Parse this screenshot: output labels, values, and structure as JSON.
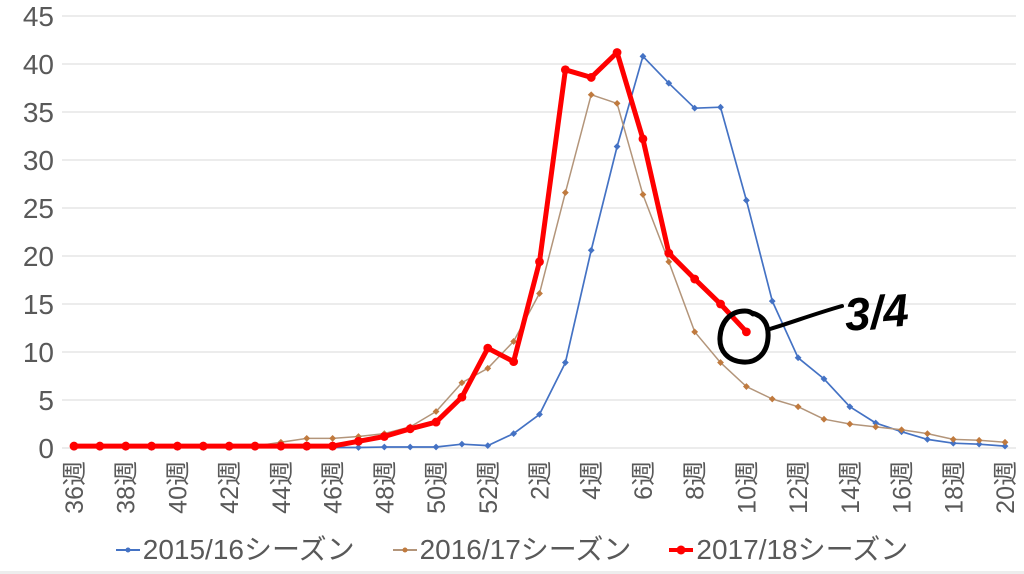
{
  "chart_data": {
    "type": "line",
    "title": "",
    "x_axis": {
      "n_points": 37,
      "tick_positions": [
        0,
        2,
        4,
        6,
        8,
        10,
        12,
        14,
        16,
        18,
        20,
        22,
        24,
        26,
        28,
        30,
        32,
        34,
        36
      ],
      "tick_labels": [
        "36週",
        "38週",
        "40週",
        "42週",
        "44週",
        "46週",
        "48週",
        "50週",
        "52週",
        "2週",
        "4週",
        "6週",
        "8週",
        "10週",
        "12週",
        "14週",
        "16週",
        "18週",
        "20週"
      ]
    },
    "y_axis": {
      "min": 0,
      "max": 45,
      "step": 5,
      "tick_labels": [
        "0",
        "5",
        "10",
        "15",
        "20",
        "25",
        "30",
        "35",
        "40",
        "45"
      ]
    },
    "grid": "horizontal",
    "legend_position": "bottom",
    "series": [
      {
        "name": "2015/16シーズン",
        "color": "#4472C4",
        "marker": "diamond",
        "marker_color": "#4472C4",
        "line_width": 1.7,
        "values": [
          0.05,
          0.05,
          0.05,
          0.05,
          0.05,
          0.05,
          0.05,
          0.05,
          0.05,
          0.05,
          0.05,
          0.05,
          0.1,
          0.1,
          0.1,
          0.4,
          0.25,
          1.5,
          3.5,
          8.9,
          20.6,
          31.4,
          40.8,
          38,
          35.4,
          35.5,
          25.8,
          15.3,
          9.4,
          7.2,
          4.3,
          2.6,
          1.7,
          0.9,
          0.5,
          0.4,
          0.2
        ]
      },
      {
        "name": "2016/17シーズン",
        "color": "#B3957A",
        "marker": "diamond",
        "marker_color": "#C07A3E",
        "line_width": 1.5,
        "values": [
          0.2,
          0.2,
          0.2,
          0.2,
          0.2,
          0.2,
          0.2,
          0.2,
          0.6,
          1,
          1,
          1.2,
          1.5,
          2.2,
          3.8,
          6.8,
          8.3,
          11.1,
          16.1,
          26.6,
          36.8,
          35.9,
          26.4,
          19.4,
          12.1,
          8.9,
          6.4,
          5.1,
          4.3,
          3,
          2.5,
          2.2,
          1.9,
          1.5,
          0.9,
          0.8,
          0.6
        ]
      },
      {
        "name": "2017/18シーズン",
        "color": "#FF0000",
        "marker": "circle",
        "marker_color": "#FF0000",
        "line_width": 5,
        "values": [
          0.2,
          0.2,
          0.2,
          0.2,
          0.2,
          0.2,
          0.2,
          0.2,
          0.2,
          0.2,
          0.2,
          0.7,
          1.2,
          2,
          2.7,
          5.3,
          10.4,
          9,
          19.4,
          39.4,
          38.6,
          41.2,
          32.2,
          20.3,
          17.6,
          15,
          12.1,
          null,
          null,
          null,
          null,
          null,
          null,
          null,
          null,
          null,
          null
        ]
      }
    ],
    "annotation": {
      "label": "3/4",
      "style": "handwritten circle around last point of 2017/18 series with connector line",
      "color": "#000000"
    }
  },
  "colors": {
    "background": "#FFFFFF",
    "grid": "#D9D9D9",
    "axis_text": "#595959",
    "annotation": "#000000"
  }
}
